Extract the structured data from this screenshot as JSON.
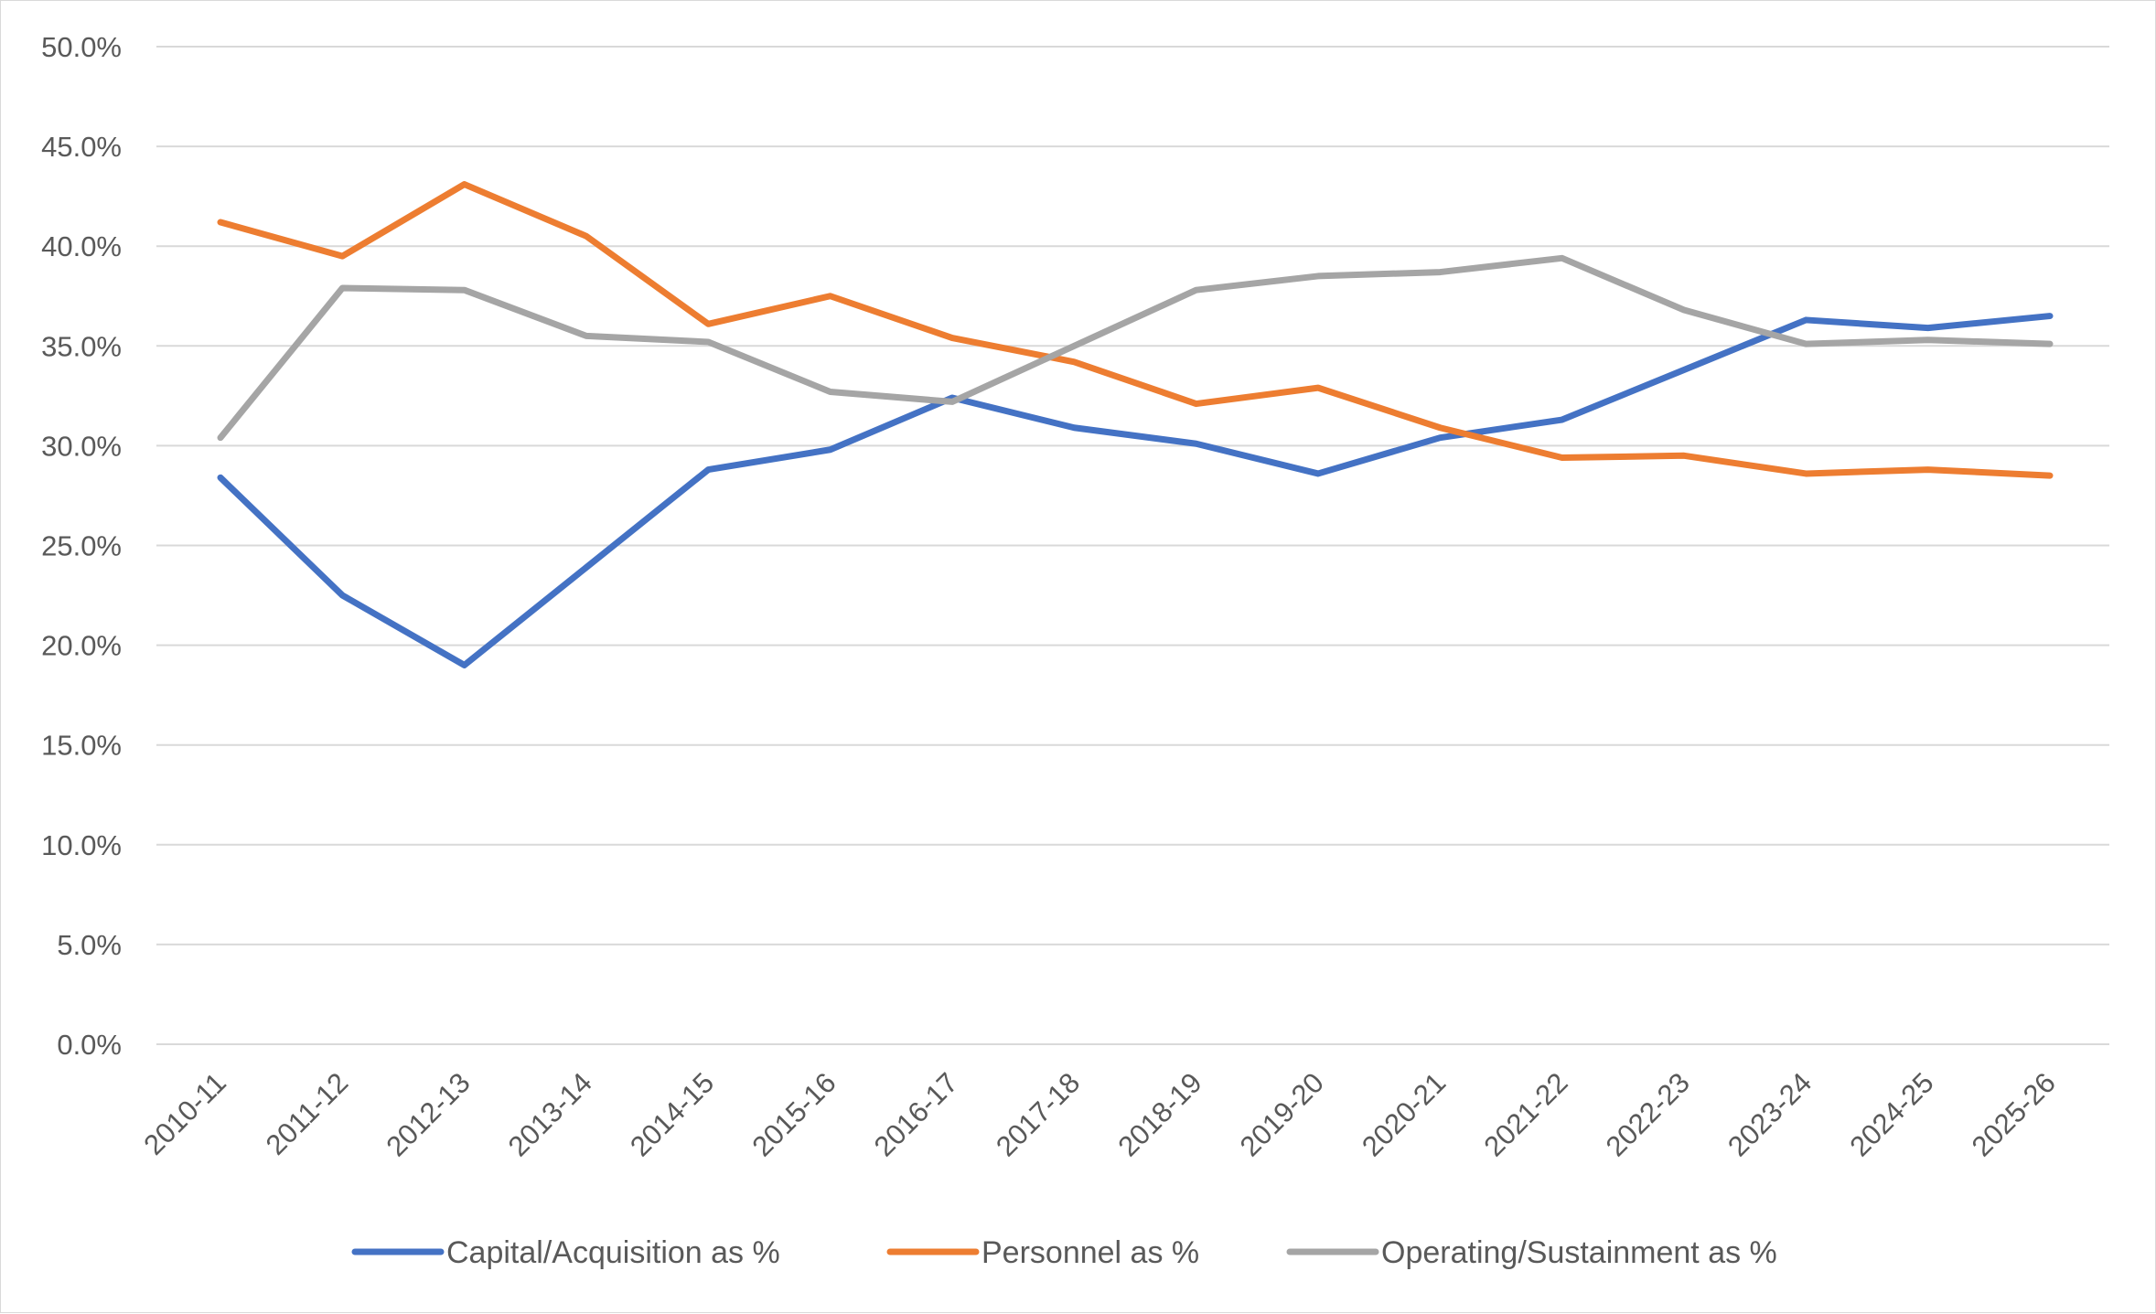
{
  "chart_data": {
    "type": "line",
    "title": "",
    "xlabel": "",
    "ylabel": "",
    "ylim": [
      0,
      50
    ],
    "y_ticks": [
      0,
      5,
      10,
      15,
      20,
      25,
      30,
      35,
      40,
      45,
      50
    ],
    "y_tick_labels": [
      "0.0%",
      "5.0%",
      "10.0%",
      "15.0%",
      "20.0%",
      "25.0%",
      "30.0%",
      "35.0%",
      "40.0%",
      "45.0%",
      "50.0%"
    ],
    "grid": "horizontal",
    "legend_position": "bottom",
    "categories": [
      "2010-11",
      "2011-12",
      "2012-13",
      "2013-14",
      "2014-15",
      "2015-16",
      "2016-17",
      "2017-18",
      "2018-19",
      "2019-20",
      "2020-21",
      "2021-22",
      "2022-23",
      "2023-24",
      "2024-25",
      "2025-26"
    ],
    "series": [
      {
        "name": "Capital/Acquisition as %",
        "color": "#4472c4",
        "values": [
          28.4,
          22.5,
          19.0,
          23.9,
          28.8,
          29.8,
          32.4,
          30.9,
          30.1,
          28.6,
          30.4,
          31.3,
          33.8,
          36.3,
          35.9,
          36.5
        ]
      },
      {
        "name": "Personnel as %",
        "color": "#ed7d31",
        "values": [
          41.2,
          39.5,
          43.1,
          40.5,
          36.1,
          37.5,
          35.4,
          34.2,
          32.1,
          32.9,
          30.9,
          29.4,
          29.5,
          28.6,
          28.8,
          28.5
        ]
      },
      {
        "name": "Operating/Sustainment as %",
        "color": "#a5a5a5",
        "values": [
          30.4,
          37.9,
          37.8,
          35.5,
          35.2,
          32.7,
          32.2,
          35.0,
          37.8,
          38.5,
          38.7,
          39.4,
          36.8,
          35.1,
          35.3,
          35.1
        ]
      }
    ]
  }
}
